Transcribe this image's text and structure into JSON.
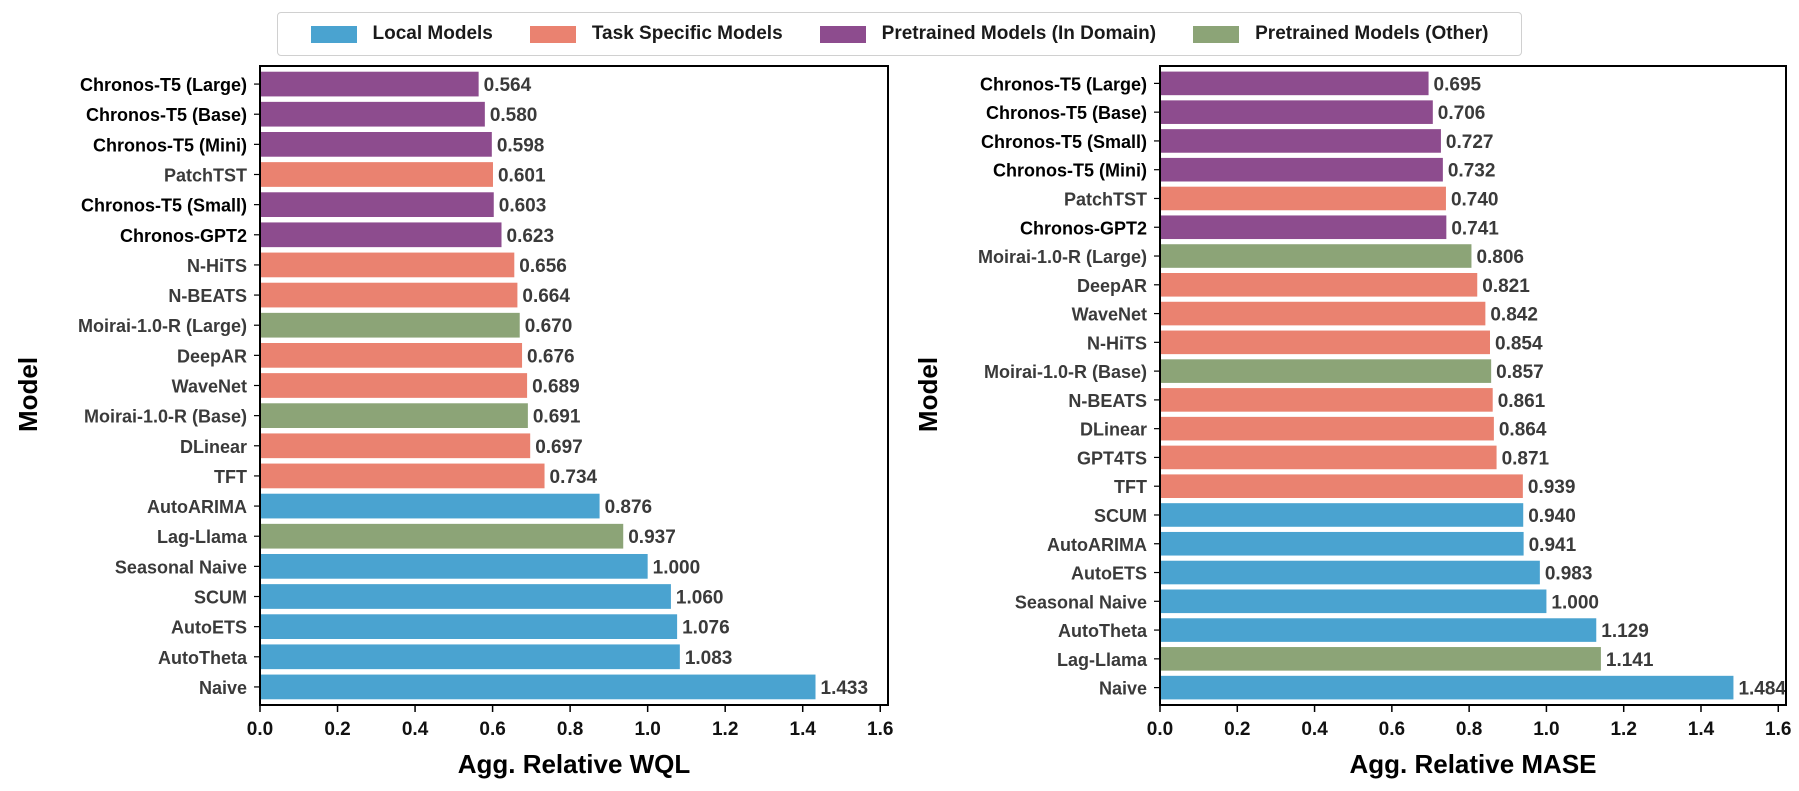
{
  "legend": [
    {
      "label": "Local Models",
      "color": "#4aa3d0"
    },
    {
      "label": "Task Specific Models",
      "color": "#ea8270"
    },
    {
      "label": "Pretrained Models (In Domain)",
      "color": "#8d4c8e"
    },
    {
      "label": "Pretrained Models (Other)",
      "color": "#8ca477"
    }
  ],
  "group_colors": {
    "local": "#4aa3d0",
    "task": "#ea8270",
    "in_domain": "#8d4c8e",
    "other": "#8ca477"
  },
  "chart_data": [
    {
      "type": "bar",
      "orientation": "horizontal",
      "title": "",
      "xlabel": "Agg. Relative WQL",
      "ylabel": "Model",
      "xlim": [
        0,
        1.62
      ],
      "xticks": [
        "0.0",
        "0.2",
        "0.4",
        "0.6",
        "0.8",
        "1.0",
        "1.2",
        "1.4",
        "1.6"
      ],
      "bars": [
        {
          "label": "Chronos-T5 (Large)",
          "value": 0.564,
          "value_text": "0.564",
          "group": "in_domain",
          "bold": true
        },
        {
          "label": "Chronos-T5 (Base)",
          "value": 0.58,
          "value_text": "0.580",
          "group": "in_domain",
          "bold": true
        },
        {
          "label": "Chronos-T5 (Mini)",
          "value": 0.598,
          "value_text": "0.598",
          "group": "in_domain",
          "bold": true
        },
        {
          "label": "PatchTST",
          "value": 0.601,
          "value_text": "0.601",
          "group": "task",
          "bold": false
        },
        {
          "label": "Chronos-T5 (Small)",
          "value": 0.603,
          "value_text": "0.603",
          "group": "in_domain",
          "bold": true
        },
        {
          "label": "Chronos-GPT2",
          "value": 0.623,
          "value_text": "0.623",
          "group": "in_domain",
          "bold": true
        },
        {
          "label": "N-HiTS",
          "value": 0.656,
          "value_text": "0.656",
          "group": "task",
          "bold": false
        },
        {
          "label": "N-BEATS",
          "value": 0.664,
          "value_text": "0.664",
          "group": "task",
          "bold": false
        },
        {
          "label": "Moirai-1.0-R (Large)",
          "value": 0.67,
          "value_text": "0.670",
          "group": "other",
          "bold": false
        },
        {
          "label": "DeepAR",
          "value": 0.676,
          "value_text": "0.676",
          "group": "task",
          "bold": false
        },
        {
          "label": "WaveNet",
          "value": 0.689,
          "value_text": "0.689",
          "group": "task",
          "bold": false
        },
        {
          "label": "Moirai-1.0-R (Base)",
          "value": 0.691,
          "value_text": "0.691",
          "group": "other",
          "bold": false
        },
        {
          "label": "DLinear",
          "value": 0.697,
          "value_text": "0.697",
          "group": "task",
          "bold": false
        },
        {
          "label": "TFT",
          "value": 0.734,
          "value_text": "0.734",
          "group": "task",
          "bold": false
        },
        {
          "label": "AutoARIMA",
          "value": 0.876,
          "value_text": "0.876",
          "group": "local",
          "bold": false
        },
        {
          "label": "Lag-Llama",
          "value": 0.937,
          "value_text": "0.937",
          "group": "other",
          "bold": false
        },
        {
          "label": "Seasonal Naive",
          "value": 1.0,
          "value_text": "1.000",
          "group": "local",
          "bold": false
        },
        {
          "label": "SCUM",
          "value": 1.06,
          "value_text": "1.060",
          "group": "local",
          "bold": false
        },
        {
          "label": "AutoETS",
          "value": 1.076,
          "value_text": "1.076",
          "group": "local",
          "bold": false
        },
        {
          "label": "AutoTheta",
          "value": 1.083,
          "value_text": "1.083",
          "group": "local",
          "bold": false
        },
        {
          "label": "Naive",
          "value": 1.433,
          "value_text": "1.433",
          "group": "local",
          "bold": false
        }
      ]
    },
    {
      "type": "bar",
      "orientation": "horizontal",
      "title": "",
      "xlabel": "Agg. Relative MASE",
      "ylabel": "Model",
      "xlim": [
        0,
        1.62
      ],
      "xticks": [
        "0.0",
        "0.2",
        "0.4",
        "0.6",
        "0.8",
        "1.0",
        "1.2",
        "1.4",
        "1.6"
      ],
      "bars": [
        {
          "label": "Chronos-T5 (Large)",
          "value": 0.695,
          "value_text": "0.695",
          "group": "in_domain",
          "bold": true
        },
        {
          "label": "Chronos-T5 (Base)",
          "value": 0.706,
          "value_text": "0.706",
          "group": "in_domain",
          "bold": true
        },
        {
          "label": "Chronos-T5 (Small)",
          "value": 0.727,
          "value_text": "0.727",
          "group": "in_domain",
          "bold": true
        },
        {
          "label": "Chronos-T5 (Mini)",
          "value": 0.732,
          "value_text": "0.732",
          "group": "in_domain",
          "bold": true
        },
        {
          "label": "PatchTST",
          "value": 0.74,
          "value_text": "0.740",
          "group": "task",
          "bold": false
        },
        {
          "label": "Chronos-GPT2",
          "value": 0.741,
          "value_text": "0.741",
          "group": "in_domain",
          "bold": true
        },
        {
          "label": "Moirai-1.0-R (Large)",
          "value": 0.806,
          "value_text": "0.806",
          "group": "other",
          "bold": false
        },
        {
          "label": "DeepAR",
          "value": 0.821,
          "value_text": "0.821",
          "group": "task",
          "bold": false
        },
        {
          "label": "WaveNet",
          "value": 0.842,
          "value_text": "0.842",
          "group": "task",
          "bold": false
        },
        {
          "label": "N-HiTS",
          "value": 0.854,
          "value_text": "0.854",
          "group": "task",
          "bold": false
        },
        {
          "label": "Moirai-1.0-R (Base)",
          "value": 0.857,
          "value_text": "0.857",
          "group": "other",
          "bold": false
        },
        {
          "label": "N-BEATS",
          "value": 0.861,
          "value_text": "0.861",
          "group": "task",
          "bold": false
        },
        {
          "label": "DLinear",
          "value": 0.864,
          "value_text": "0.864",
          "group": "task",
          "bold": false
        },
        {
          "label": "GPT4TS",
          "value": 0.871,
          "value_text": "0.871",
          "group": "task",
          "bold": false
        },
        {
          "label": "TFT",
          "value": 0.939,
          "value_text": "0.939",
          "group": "task",
          "bold": false
        },
        {
          "label": "SCUM",
          "value": 0.94,
          "value_text": "0.940",
          "group": "local",
          "bold": false
        },
        {
          "label": "AutoARIMA",
          "value": 0.941,
          "value_text": "0.941",
          "group": "local",
          "bold": false
        },
        {
          "label": "AutoETS",
          "value": 0.983,
          "value_text": "0.983",
          "group": "local",
          "bold": false
        },
        {
          "label": "Seasonal Naive",
          "value": 1.0,
          "value_text": "1.000",
          "group": "local",
          "bold": false
        },
        {
          "label": "AutoTheta",
          "value": 1.129,
          "value_text": "1.129",
          "group": "local",
          "bold": false
        },
        {
          "label": "Lag-Llama",
          "value": 1.141,
          "value_text": "1.141",
          "group": "other",
          "bold": false
        },
        {
          "label": "Naive",
          "value": 1.484,
          "value_text": "1.484",
          "group": "local",
          "bold": false
        }
      ]
    }
  ]
}
